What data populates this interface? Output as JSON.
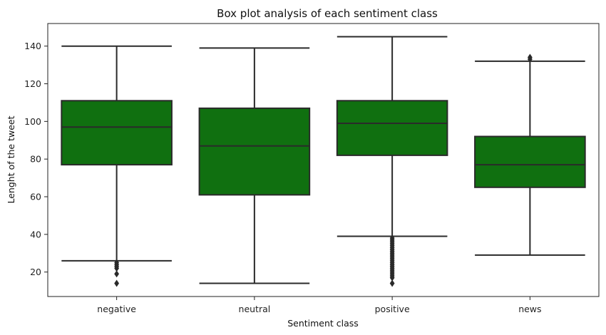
{
  "chart_data": {
    "type": "box",
    "title": "Box plot analysis of each sentiment class",
    "xlabel": "Sentiment class",
    "ylabel": "Lenght of the tweet",
    "ylim": [
      7,
      152
    ],
    "yticks": [
      20,
      40,
      60,
      80,
      100,
      120,
      140
    ],
    "grid": false,
    "colors": {
      "box_fill": "#107010",
      "line": "#2a2a2a"
    },
    "categories": [
      "negative",
      "neutral",
      "positive",
      "news"
    ],
    "boxes": [
      {
        "category": "negative",
        "whisker_low": 26,
        "q1": 77,
        "median": 97,
        "q3": 111,
        "whisker_high": 140,
        "outliers": [
          14,
          19,
          22,
          23,
          24,
          25
        ]
      },
      {
        "category": "neutral",
        "whisker_low": 14,
        "q1": 61,
        "median": 87,
        "q3": 107,
        "whisker_high": 139,
        "outliers": []
      },
      {
        "category": "positive",
        "whisker_low": 39,
        "q1": 82,
        "median": 99,
        "q3": 111,
        "whisker_high": 145,
        "outliers": [
          14,
          17,
          18,
          19,
          20,
          21,
          22,
          23,
          24,
          25,
          26,
          27,
          28,
          29,
          30,
          31,
          32,
          33,
          34,
          35,
          36,
          37,
          38
        ]
      },
      {
        "category": "news",
        "whisker_low": 29,
        "q1": 65,
        "median": 77,
        "q3": 92,
        "whisker_high": 132,
        "outliers": [
          133,
          134
        ]
      }
    ]
  }
}
